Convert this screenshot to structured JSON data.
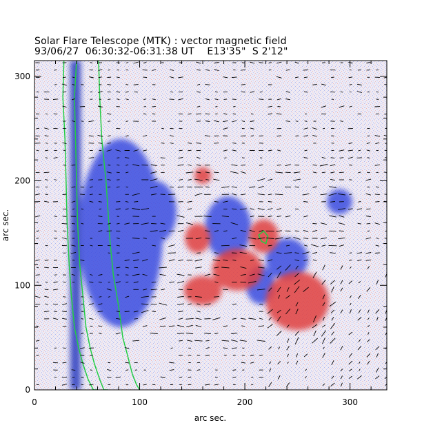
{
  "title": "Solar Flare Telescope (MTK) : vector magnetic field",
  "subtitle": "93/06/27  06:30:32-06:31:38 UT    E13'35\"  S 2'12\"",
  "chart_data": {
    "type": "heatmap",
    "xlabel": "arc sec.",
    "ylabel": "arc sec.",
    "xlim": [
      0,
      335
    ],
    "ylim": [
      0,
      315
    ],
    "x_ticks": [
      "0",
      "100",
      "200",
      "300"
    ],
    "y_ticks": [
      "0",
      "100",
      "200",
      "300"
    ],
    "x_tick_values": [
      0,
      100,
      200,
      300
    ],
    "y_tick_values": [
      0,
      100,
      200,
      300
    ],
    "colors": {
      "positive": "#e04040",
      "negative": "#3a4ee0",
      "background": "#ece8f4",
      "contour": "#22cc44",
      "vectors": "#000000"
    },
    "regions": {
      "negative": [
        {
          "cx": 82,
          "cy": 150,
          "rx": 40,
          "ry": 90
        },
        {
          "cx": 115,
          "cy": 170,
          "rx": 20,
          "ry": 30
        },
        {
          "cx": 184,
          "cy": 155,
          "rx": 22,
          "ry": 30
        },
        {
          "cx": 240,
          "cy": 125,
          "rx": 20,
          "ry": 20
        },
        {
          "cx": 215,
          "cy": 100,
          "rx": 14,
          "ry": 18
        },
        {
          "cx": 290,
          "cy": 180,
          "rx": 12,
          "ry": 12
        }
      ],
      "positive": [
        {
          "cx": 155,
          "cy": 145,
          "rx": 12,
          "ry": 14
        },
        {
          "cx": 218,
          "cy": 147,
          "rx": 14,
          "ry": 16
        },
        {
          "cx": 193,
          "cy": 115,
          "rx": 24,
          "ry": 20
        },
        {
          "cx": 160,
          "cy": 95,
          "rx": 18,
          "ry": 14
        },
        {
          "cx": 250,
          "cy": 85,
          "rx": 30,
          "ry": 28
        },
        {
          "cx": 160,
          "cy": 205,
          "rx": 8,
          "ry": 8
        }
      ]
    },
    "contours": [
      {
        "x": [
          28,
          27,
          29,
          30,
          31,
          33,
          35,
          38,
          42,
          46,
          51,
          56,
          60
        ],
        "y": [
          315,
          280,
          240,
          200,
          160,
          120,
          90,
          60,
          40,
          25,
          10,
          0,
          0
        ]
      },
      {
        "x": [
          40,
          38,
          39,
          40,
          41,
          43,
          46,
          49,
          53,
          57,
          62,
          66,
          70
        ],
        "y": [
          315,
          280,
          240,
          200,
          160,
          120,
          90,
          60,
          40,
          25,
          10,
          0,
          0
        ]
      },
      {
        "x": [
          61,
          62,
          64,
          68,
          70,
          72,
          75,
          80,
          84,
          88,
          93,
          97,
          100
        ],
        "y": [
          315,
          280,
          240,
          200,
          170,
          140,
          110,
          80,
          50,
          35,
          15,
          5,
          0
        ]
      },
      {
        "x": [
          213,
          218,
          222,
          220,
          216,
          213
        ],
        "y": [
          148,
          152,
          147,
          140,
          142,
          148
        ]
      }
    ]
  }
}
